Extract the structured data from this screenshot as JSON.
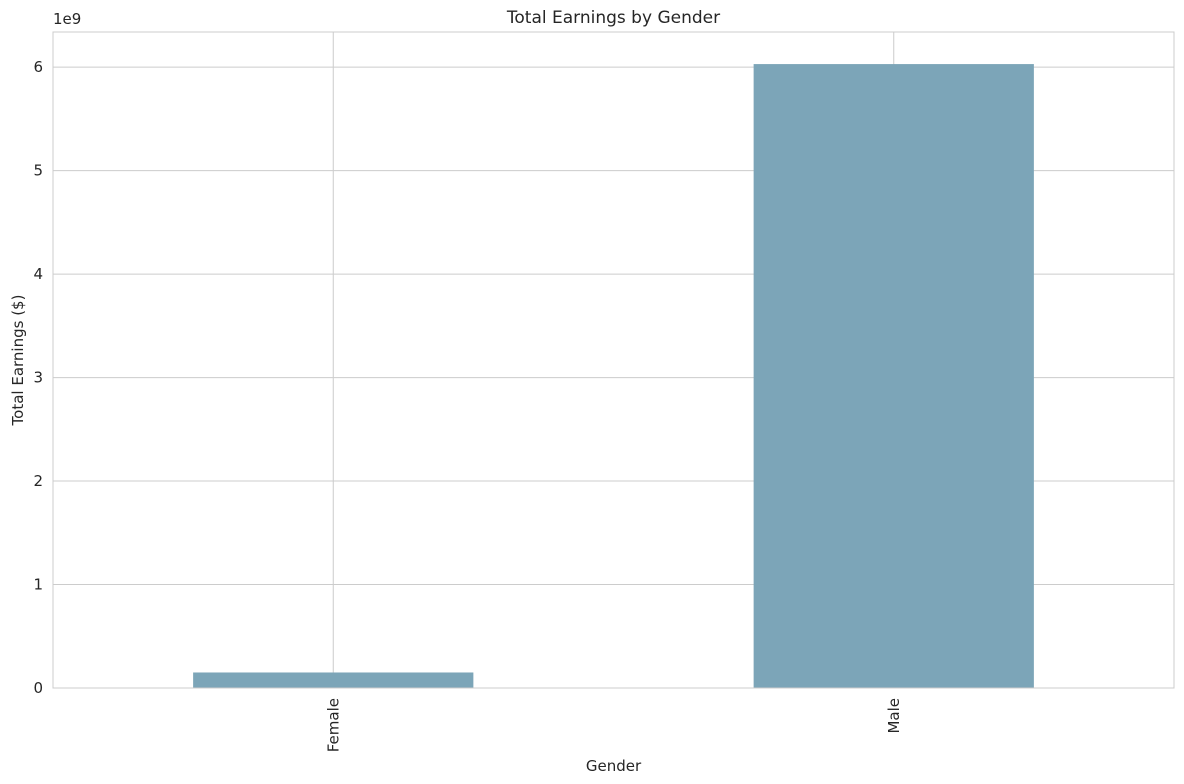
{
  "chart_data": {
    "type": "bar",
    "title": "Total Earnings by Gender",
    "xlabel": "Gender",
    "ylabel": "Total Earnings ($)",
    "scale_label": "1e9",
    "categories": [
      "Female",
      "Male"
    ],
    "values": [
      150000000,
      6030000000
    ],
    "yticks": [
      0,
      1000000000,
      2000000000,
      3000000000,
      4000000000,
      5000000000,
      6000000000
    ],
    "ytick_labels": [
      "0",
      "1",
      "2",
      "3",
      "4",
      "5",
      "6"
    ],
    "ylim": [
      0,
      6340000000
    ],
    "grid": true,
    "bar_color": "#7ca5b8",
    "grid_color": "#cccccc"
  }
}
